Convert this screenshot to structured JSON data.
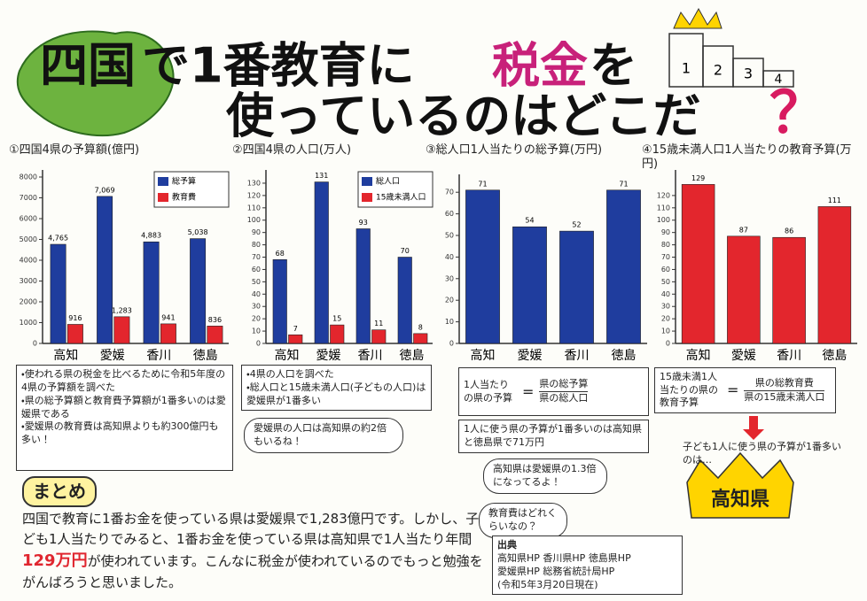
{
  "header": {
    "title_line1": [
      "四国",
      "で1番教育に",
      "税金",
      "を"
    ],
    "title_line2": "使っているのはどこだ",
    "question_mark": "？",
    "podium": [
      "1",
      "2",
      "3",
      "4"
    ]
  },
  "chart_data": [
    {
      "type": "bar",
      "title": "①四国4県の予算額(億円)",
      "categories": [
        "高知",
        "愛媛",
        "香川",
        "徳島"
      ],
      "series": [
        {
          "name": "総予算",
          "color": "#1f3d9e",
          "values": [
            4765,
            7069,
            4883,
            5038
          ],
          "value_labels": [
            "4,765",
            "7,069",
            "4,883",
            "5,038"
          ]
        },
        {
          "name": "教育費",
          "color": "#e3262d",
          "values": [
            916,
            1283,
            941,
            836
          ],
          "value_labels": [
            "916",
            "1,283",
            "941",
            "836"
          ]
        }
      ],
      "ylim": [
        0,
        8000
      ],
      "yticks": [
        0,
        1000,
        2000,
        3000,
        4000,
        5000,
        6000,
        7000,
        8000
      ]
    },
    {
      "type": "bar",
      "title": "②四国4県の人口(万人)",
      "categories": [
        "高知",
        "愛媛",
        "香川",
        "徳島"
      ],
      "series": [
        {
          "name": "総人口",
          "color": "#1f3d9e",
          "values": [
            68,
            131,
            93,
            70
          ]
        },
        {
          "name": "15歳未満人口",
          "color": "#e3262d",
          "values": [
            7,
            15,
            11,
            8
          ]
        }
      ],
      "ylim": [
        0,
        135
      ],
      "yticks": [
        0,
        10,
        20,
        30,
        40,
        50,
        60,
        70,
        80,
        90,
        100,
        110,
        120,
        130
      ]
    },
    {
      "type": "bar",
      "title": "③総人口1人当たりの総予算(万円)",
      "categories": [
        "高知",
        "愛媛",
        "香川",
        "徳島"
      ],
      "values": [
        71,
        54,
        52,
        71
      ],
      "color": "#1f3d9e",
      "ylim": [
        0,
        75
      ],
      "yticks": [
        0,
        10,
        20,
        30,
        40,
        50,
        60,
        70
      ]
    },
    {
      "type": "bar",
      "title": "④15歳未満人口1人当たりの教育予算(万円)",
      "categories": [
        "高知",
        "愛媛",
        "香川",
        "徳島"
      ],
      "values": [
        129,
        87,
        86,
        111
      ],
      "color": "#e3262d",
      "ylim": [
        0,
        135
      ],
      "yticks": [
        0,
        10,
        20,
        30,
        40,
        50,
        60,
        70,
        80,
        90,
        100,
        110,
        120
      ]
    }
  ],
  "notes": {
    "chart1": [
      "・使われる県の税金を比べるために令和5年度の4県の予算額を調べた",
      "・県の総予算額と教育費予算額が1番多いのは愛媛県である",
      "・愛媛県の教育費は高知県よりも約300億円も多い！"
    ],
    "chart2": [
      "・4県の人口を調べた",
      "・総人口と15歳未満人口(子どもの人口)は愛媛県が1番多い"
    ],
    "chart2_bubble": "愛媛県の人口は高知県の約2倍もいるね！",
    "chart3_formula": {
      "left": "1人当たりの県の予算",
      "numerator": "県の総予算",
      "denominator": "県の総人口"
    },
    "chart3_result": "1人に使う県の予算が1番多いのは高知県と徳島県で71万円",
    "chart4_formula": {
      "left": "15歳未満1人当たりの県の教育予算",
      "numerator": "県の総教育費",
      "denominator": "県の15歳未満人口"
    },
    "chart4_caption": "子ども1人に使う県の予算が1番多いのは…",
    "winner": "高知県",
    "bubble_ratio": "高知県は愛媛県の1.3倍になってるよ！",
    "bubble_question": "教育費はどれくらいなの？"
  },
  "summary": {
    "heading": "まとめ",
    "text": [
      "四国で教育に1番お金を使っている県は愛媛県で1,283億円です。しかし、子ども1人当たりでみると、1番お金を使っている県は高知県で1人当たり年間",
      "129万円",
      "が使われています。こんなに税金が使われているのでもっと勉強をがんばろうと思いました。"
    ]
  },
  "sources": {
    "heading": "出典",
    "items": [
      "高知県HP",
      "香川県HP",
      "徳島県HP",
      "愛媛県HP",
      "総務省統計局HP",
      "(令和5年3月20日現在)"
    ]
  }
}
